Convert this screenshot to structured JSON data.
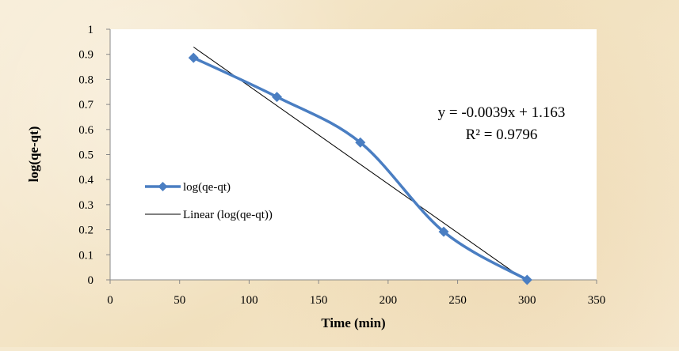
{
  "chart_data": {
    "type": "line",
    "title": "",
    "xlabel": "Time (min)",
    "ylabel": "log(qe-qt)",
    "xlim": [
      0,
      350
    ],
    "ylim": [
      0,
      1
    ],
    "x_ticks": [
      0,
      50,
      100,
      150,
      200,
      250,
      300,
      350
    ],
    "y_ticks": [
      "0",
      "0.1",
      "0.2",
      "0.3",
      "0.4",
      "0.5",
      "0.6",
      "0.7",
      "0.8",
      "0.9",
      "1"
    ],
    "grid": false,
    "legend_position": "left",
    "series": [
      {
        "name": "log(qe-qt)",
        "x": [
          60,
          120,
          180,
          240,
          300
        ],
        "y": [
          0.886,
          0.73,
          0.548,
          0.192,
          0.0
        ],
        "color": "#4a7ec2",
        "marker": "diamond",
        "smooth": true
      }
    ],
    "trendline": {
      "name": "Linear (log(qe-qt))",
      "slope": -0.0039,
      "intercept": 1.163,
      "x_range": [
        60,
        300
      ],
      "color": "#000000"
    },
    "equation_text": "y = -0.0039x + 1.163",
    "r2_text": "R² = 0.9796",
    "colors": {
      "plot_background": "#ffffff",
      "frame_background": "#f5e9cf",
      "axis": "#888888",
      "series": "#4a7ec2"
    }
  }
}
